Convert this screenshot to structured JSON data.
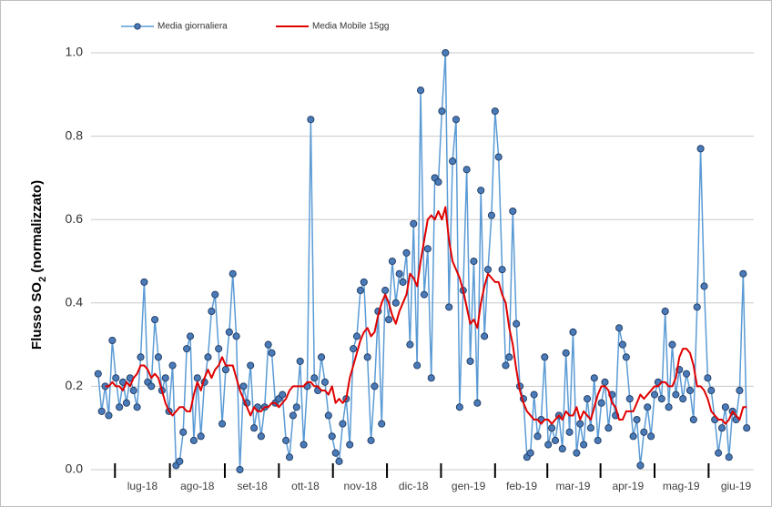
{
  "chart_data": {
    "type": "line",
    "ylabel": [
      "Flusso SO",
      "2",
      " (normalizzato)"
    ],
    "legend": "top",
    "grid": true,
    "xlim": [
      -14,
      360
    ],
    "xticks": [
      {
        "value": 15,
        "label": "lug-18"
      },
      {
        "value": 46,
        "label": "ago-18"
      },
      {
        "value": 77,
        "label": "set-18"
      },
      {
        "value": 107,
        "label": "ott-18"
      },
      {
        "value": 138,
        "label": "nov-18"
      },
      {
        "value": 168,
        "label": "dic-18"
      },
      {
        "value": 199,
        "label": "gen-19"
      },
      {
        "value": 229,
        "label": "feb-19"
      },
      {
        "value": 258,
        "label": "mar-19"
      },
      {
        "value": 289,
        "label": "apr-19"
      },
      {
        "value": 319,
        "label": "mag-19"
      },
      {
        "value": 350,
        "label": "giu-19"
      }
    ],
    "ylim": [
      0,
      1.0
    ],
    "yticks": [
      {
        "value": 0,
        "label": "0.0"
      },
      0.2,
      0.4,
      0.6,
      0.8,
      {
        "value": 1,
        "label": "1.0"
      }
    ],
    "x": [
      -10,
      -8,
      -6,
      -4,
      -2,
      0,
      2,
      4,
      6,
      8,
      10,
      12,
      14,
      16,
      18,
      20,
      22,
      24,
      26,
      28,
      30,
      32,
      34,
      36,
      38,
      40,
      42,
      44,
      46,
      48,
      50,
      52,
      54,
      56,
      58,
      60,
      62,
      64,
      66,
      68,
      70,
      72,
      74,
      76,
      78,
      80,
      82,
      84,
      86,
      88,
      90,
      92,
      94,
      96,
      98,
      100,
      102,
      104,
      106,
      108,
      110,
      112,
      114,
      116,
      118,
      120,
      122,
      124,
      126,
      128,
      130,
      132,
      134,
      136,
      138,
      140,
      142,
      144,
      146,
      148,
      150,
      152,
      154,
      156,
      158,
      160,
      162,
      164,
      166,
      168,
      170,
      172,
      174,
      176,
      178,
      180,
      182,
      184,
      186,
      188,
      190,
      192,
      194,
      196,
      198,
      200,
      202,
      204,
      206,
      208,
      210,
      212,
      214,
      216,
      218,
      220,
      222,
      224,
      226,
      228,
      230,
      232,
      234,
      236,
      238,
      240,
      242,
      244,
      246,
      248,
      250,
      252,
      254,
      256,
      258,
      260,
      262,
      264,
      266,
      268,
      270,
      272,
      274,
      276,
      278,
      280,
      282,
      284,
      286,
      288,
      290,
      292,
      294,
      296,
      298,
      300,
      302,
      304,
      306,
      308,
      310,
      312,
      314,
      316,
      318,
      320,
      322,
      324,
      326,
      328,
      330,
      332,
      334,
      336,
      338,
      340,
      342,
      344,
      346,
      348,
      350,
      352,
      354,
      356
    ],
    "series": [
      {
        "name": "Media giornaliera",
        "color": "#5b9bd5",
        "marker_color": "#4a7ab8",
        "markers": true,
        "values": [
          0.23,
          0.14,
          0.2,
          0.13,
          0.31,
          0.22,
          0.15,
          0.21,
          0.16,
          0.22,
          0.19,
          0.15,
          0.27,
          0.45,
          0.21,
          0.2,
          0.36,
          0.27,
          0.19,
          0.22,
          0.14,
          0.25,
          0.01,
          0.02,
          0.09,
          0.29,
          0.32,
          0.07,
          0.22,
          0.08,
          0.21,
          0.27,
          0.38,
          0.42,
          0.29,
          0.11,
          0.24,
          0.33,
          0.47,
          0.32,
          0.0,
          0.2,
          0.16,
          0.25,
          0.1,
          0.15,
          0.08,
          0.15,
          0.3,
          0.28,
          0.16,
          0.17,
          0.18,
          0.07,
          0.03,
          0.13,
          0.15,
          0.26,
          0.06,
          0.2,
          0.84,
          0.22,
          0.19,
          0.27,
          0.21,
          0.13,
          0.08,
          0.04,
          0.02,
          0.11,
          0.17,
          0.06,
          0.29,
          0.32,
          0.43,
          0.45,
          0.27,
          0.07,
          0.2,
          0.38,
          0.11,
          0.43,
          0.36,
          0.5,
          0.4,
          0.47,
          0.45,
          0.52,
          0.3,
          0.59,
          0.25,
          0.91,
          0.42,
          0.53,
          0.22,
          0.7,
          0.69,
          0.86,
          1.0,
          0.39,
          0.74,
          0.84,
          0.15,
          0.43,
          0.72,
          0.26,
          0.5,
          0.16,
          0.67,
          0.32,
          0.48,
          0.61,
          0.86,
          0.75,
          0.48,
          0.25,
          0.27,
          0.62,
          0.35,
          0.2,
          0.17,
          0.03,
          0.04,
          0.18,
          0.08,
          0.12,
          0.27,
          0.06,
          0.1,
          0.07,
          0.13,
          0.05,
          0.28,
          0.09,
          0.33,
          0.04,
          0.11,
          0.06,
          0.17,
          0.1,
          0.22,
          0.07,
          0.16,
          0.21,
          0.1,
          0.18,
          0.13,
          0.34,
          0.3,
          0.27,
          0.17,
          0.08,
          0.12,
          0.01,
          0.09,
          0.15,
          0.08,
          0.18,
          0.21,
          0.17,
          0.38,
          0.15,
          0.3,
          0.18,
          0.24,
          0.17,
          0.23,
          0.19,
          0.12,
          0.39,
          0.77,
          0.44,
          0.22,
          0.19,
          0.12,
          0.04,
          0.1,
          0.15,
          0.03,
          0.14,
          0.12,
          0.19,
          0.47,
          0.1
        ]
      },
      {
        "name": "Media Mobile 15gg",
        "color": "#e00000",
        "markers": false,
        "values": [
          null,
          null,
          0.2,
          0.2,
          0.21,
          0.2,
          0.2,
          0.19,
          0.21,
          0.2,
          0.22,
          0.23,
          0.25,
          0.25,
          0.24,
          0.22,
          0.23,
          0.22,
          0.19,
          0.16,
          0.14,
          0.13,
          0.14,
          0.15,
          0.15,
          0.14,
          0.14,
          0.18,
          0.21,
          0.19,
          0.22,
          0.24,
          0.22,
          0.24,
          0.25,
          0.27,
          0.25,
          0.25,
          0.25,
          0.22,
          0.19,
          0.17,
          0.15,
          0.13,
          0.15,
          0.14,
          0.14,
          0.15,
          0.15,
          0.16,
          0.16,
          0.15,
          0.16,
          0.17,
          0.19,
          0.2,
          0.2,
          0.2,
          0.2,
          0.21,
          0.21,
          0.2,
          0.2,
          0.19,
          0.19,
          0.18,
          0.2,
          0.16,
          0.17,
          0.16,
          0.17,
          0.22,
          0.25,
          0.28,
          0.31,
          0.33,
          0.34,
          0.32,
          0.33,
          0.37,
          0.4,
          0.42,
          0.4,
          0.37,
          0.35,
          0.38,
          0.4,
          0.42,
          0.47,
          0.46,
          0.44,
          0.5,
          0.55,
          0.6,
          0.61,
          0.6,
          0.62,
          0.6,
          0.63,
          0.55,
          0.5,
          0.48,
          0.46,
          0.43,
          0.39,
          0.35,
          0.36,
          0.34,
          0.4,
          0.44,
          0.47,
          0.46,
          0.45,
          0.45,
          0.42,
          0.4,
          0.34,
          0.3,
          0.24,
          0.19,
          0.16,
          0.14,
          0.13,
          0.12,
          0.12,
          0.11,
          0.12,
          0.12,
          0.11,
          0.12,
          0.13,
          0.12,
          0.14,
          0.13,
          0.13,
          0.15,
          0.12,
          0.14,
          0.13,
          0.12,
          0.15,
          0.18,
          0.2,
          0.2,
          0.19,
          0.16,
          0.15,
          0.12,
          0.12,
          0.14,
          0.14,
          0.14,
          0.16,
          0.18,
          0.17,
          0.18,
          0.19,
          0.2,
          0.2,
          0.21,
          0.21,
          0.2,
          0.2,
          0.22,
          0.27,
          0.29,
          0.29,
          0.28,
          0.25,
          0.2,
          0.2,
          0.19,
          0.17,
          0.14,
          0.13,
          0.12,
          0.12,
          0.11,
          0.12,
          0.14,
          0.13,
          0.12,
          0.15,
          0.15
        ]
      }
    ]
  }
}
